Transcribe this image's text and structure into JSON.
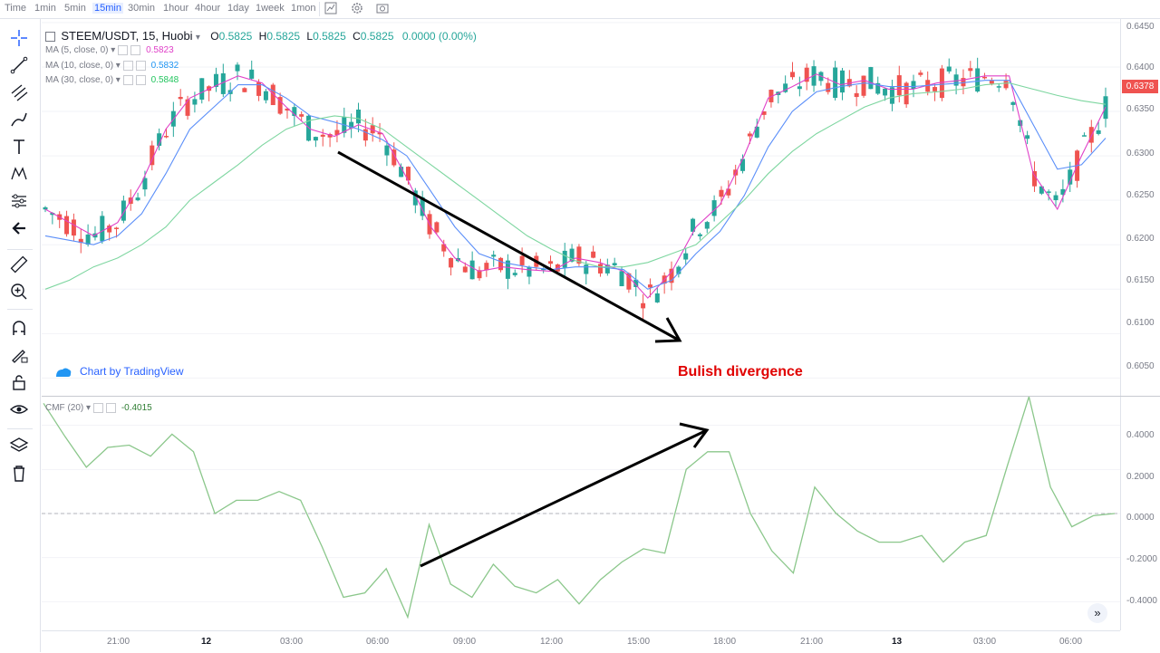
{
  "toolbar": {
    "timeframes": [
      "Time",
      "1min",
      "5min",
      "15min",
      "30min",
      "1hour",
      "4hour",
      "1day",
      "1week",
      "1mon"
    ],
    "active_timeframe": "15min"
  },
  "legend": {
    "symbol": "STEEM/USDT, 15, Huobi",
    "ohlc": [
      {
        "label": "O",
        "value": "0.5825"
      },
      {
        "label": "H",
        "value": "0.5825"
      },
      {
        "label": "L",
        "value": "0.5825"
      },
      {
        "label": "C",
        "value": "0.5825"
      }
    ],
    "change": "0.0000 (0.00%)",
    "ma": [
      {
        "label": "MA (5, close, 0)",
        "value": "0.5823",
        "color": "#e040c8"
      },
      {
        "label": "MA (10, close, 0)",
        "value": "0.5832",
        "color": "#2196f3"
      },
      {
        "label": "MA (30, close, 0)",
        "value": "0.5848",
        "color": "#22c55e"
      }
    ]
  },
  "watermark": "Chart by TradingView",
  "annotation": "Bulish divergence",
  "price_axis": {
    "ticks": [
      "0.6450",
      "0.6400",
      "0.6350",
      "0.6300",
      "0.6250",
      "0.6200",
      "0.6150",
      "0.6100",
      "0.6050"
    ],
    "last_price": "0.6378"
  },
  "cmf": {
    "label": "CMF (20)",
    "value": "-0.4015",
    "ticks": [
      "0.4000",
      "0.2000",
      "0.0000",
      "-0.2000",
      "-0.4000"
    ]
  },
  "time_axis": [
    "21:00",
    "12",
    "03:00",
    "06:00",
    "09:00",
    "12:00",
    "15:00",
    "18:00",
    "21:00",
    "13",
    "03:00",
    "06:00"
  ],
  "colors": {
    "up": "#26a69a",
    "down": "#ef5350",
    "ma5": "#e040c8",
    "ma10": "#5b8ff9",
    "ma30": "#7ed6a0",
    "cmf": "#8bc78b",
    "arrow": "#000000",
    "annotation": "#e00000"
  },
  "chart_data": [
    {
      "type": "line",
      "title": "STEEM/USDT, 15, Huobi",
      "xlabel": "",
      "ylabel": "",
      "ylim": [
        0.603,
        0.6455
      ],
      "series": [
        {
          "name": "MA (5, close, 0)",
          "values": [
            0.624,
            0.6225,
            0.621,
            0.6225,
            0.627,
            0.633,
            0.6365,
            0.6378,
            0.639,
            0.6382,
            0.6355,
            0.633,
            0.6322,
            0.6335,
            0.6325,
            0.6275,
            0.622,
            0.6185,
            0.617,
            0.6175,
            0.6172,
            0.617,
            0.6185,
            0.618,
            0.617,
            0.614,
            0.617,
            0.622,
            0.6245,
            0.63,
            0.6365,
            0.6378,
            0.6392,
            0.638,
            0.6385,
            0.6375,
            0.6375,
            0.6382,
            0.6385,
            0.639,
            0.639,
            0.628,
            0.624,
            0.63,
            0.6355
          ]
        },
        {
          "name": "MA (10, close, 0)",
          "values": [
            0.621,
            0.6205,
            0.62,
            0.621,
            0.6235,
            0.628,
            0.633,
            0.6355,
            0.638,
            0.638,
            0.6365,
            0.6345,
            0.6338,
            0.633,
            0.6318,
            0.63,
            0.626,
            0.622,
            0.619,
            0.618,
            0.6175,
            0.6172,
            0.6175,
            0.6175,
            0.6172,
            0.615,
            0.616,
            0.619,
            0.6215,
            0.6255,
            0.631,
            0.635,
            0.6372,
            0.6378,
            0.6382,
            0.6378,
            0.6378,
            0.638,
            0.6382,
            0.6385,
            0.6385,
            0.6335,
            0.6285,
            0.629,
            0.632
          ]
        },
        {
          "name": "MA (30, close, 0)",
          "values": [
            0.615,
            0.616,
            0.6175,
            0.6185,
            0.62,
            0.622,
            0.625,
            0.627,
            0.629,
            0.6312,
            0.633,
            0.634,
            0.6345,
            0.6342,
            0.633,
            0.631,
            0.629,
            0.627,
            0.625,
            0.623,
            0.621,
            0.6195,
            0.6182,
            0.6175,
            0.6175,
            0.618,
            0.619,
            0.62,
            0.6225,
            0.625,
            0.628,
            0.6305,
            0.6325,
            0.634,
            0.6355,
            0.6365,
            0.637,
            0.6372,
            0.6375,
            0.638,
            0.6382,
            0.6375,
            0.6368,
            0.6362,
            0.6358
          ]
        }
      ]
    },
    {
      "type": "line",
      "title": "CMF (20)",
      "xlabel": "",
      "ylabel": "",
      "ylim": [
        -0.53,
        0.53
      ],
      "series": [
        {
          "name": "CMF (20)",
          "values": [
            0.5,
            0.35,
            0.21,
            0.3,
            0.31,
            0.26,
            0.36,
            0.28,
            0.0,
            0.06,
            0.06,
            0.1,
            0.06,
            -0.15,
            -0.38,
            -0.36,
            -0.25,
            -0.47,
            -0.05,
            -0.32,
            -0.38,
            -0.23,
            -0.33,
            -0.36,
            -0.3,
            -0.41,
            -0.3,
            -0.22,
            -0.16,
            -0.18,
            0.2,
            0.28,
            0.28,
            0.0,
            -0.17,
            -0.27,
            0.12,
            0.0,
            -0.08,
            -0.13,
            -0.13,
            -0.1,
            -0.22,
            -0.13,
            -0.1,
            0.22,
            0.53,
            0.12,
            -0.06,
            -0.01,
            0.0
          ]
        }
      ]
    }
  ]
}
